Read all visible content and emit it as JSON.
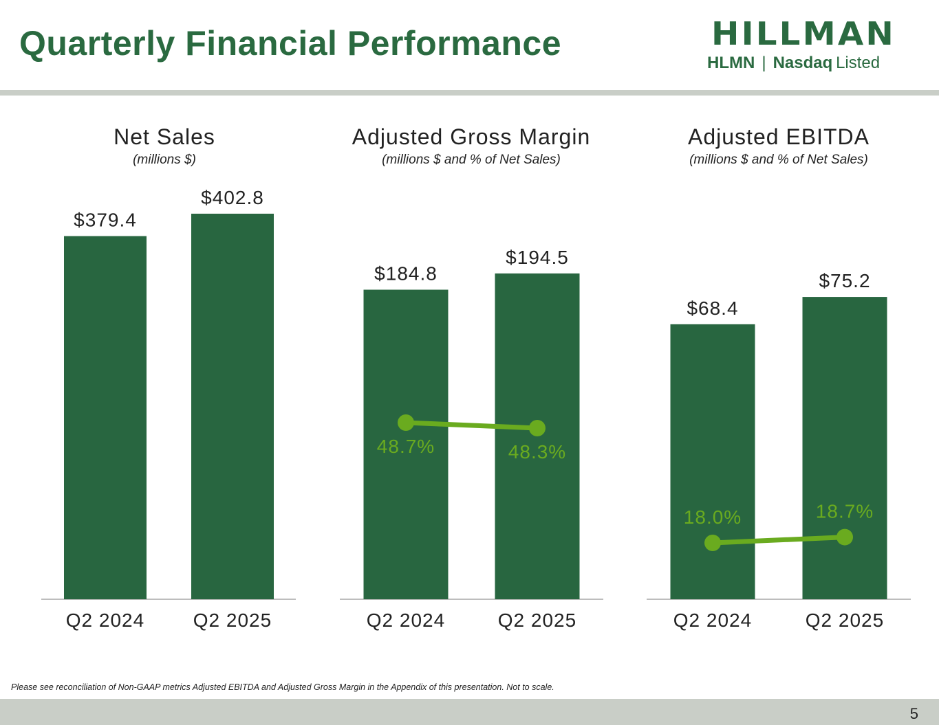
{
  "page": {
    "title": "Quarterly Financial Performance",
    "page_number": "5",
    "footnote": "Please see reconciliation of Non-GAAP metrics Adjusted EBITDA and Adjusted Gross Margin in the Appendix of this presentation. Not to scale."
  },
  "logo": {
    "wordmark": "HILLMAN",
    "ticker": "HLMN",
    "separator": "|",
    "exchange": "Nasdaq",
    "listed": "Listed"
  },
  "colors": {
    "brand_green": "#2a6a40",
    "bar_green": "#286640",
    "line_green": "#6aab1f",
    "rule_gray": "#c9cec7"
  },
  "chart_data": [
    {
      "type": "bar",
      "title": "Net Sales",
      "subtitle": "(millions $)",
      "categories": [
        "Q2 2024",
        "Q2 2025"
      ],
      "values": [
        379.4,
        402.8
      ],
      "value_labels": [
        "$379.4",
        "$402.8"
      ],
      "ylim": [
        0,
        420
      ]
    },
    {
      "type": "bar",
      "title": "Adjusted Gross Margin",
      "subtitle": "(millions $ and % of Net Sales)",
      "categories": [
        "Q2 2024",
        "Q2 2025"
      ],
      "values": [
        184.8,
        194.5
      ],
      "value_labels": [
        "$184.8",
        "$194.5"
      ],
      "ylim": [
        0,
        240
      ],
      "line_series": {
        "name": "% of Net Sales",
        "values": [
          48.7,
          48.3
        ],
        "labels": [
          "48.7%",
          "48.3%"
        ],
        "label_position": "below"
      }
    },
    {
      "type": "bar",
      "title": "Adjusted EBITDA",
      "subtitle": "(millions $ and % of Net Sales)",
      "categories": [
        "Q2 2024",
        "Q2 2025"
      ],
      "values": [
        68.4,
        75.2
      ],
      "value_labels": [
        "$68.4",
        "$75.2"
      ],
      "ylim": [
        0,
        100
      ],
      "line_series": {
        "name": "% of Net Sales",
        "values": [
          18.0,
          18.7
        ],
        "labels": [
          "18.0%",
          "18.7%"
        ],
        "label_position": "above"
      }
    }
  ]
}
